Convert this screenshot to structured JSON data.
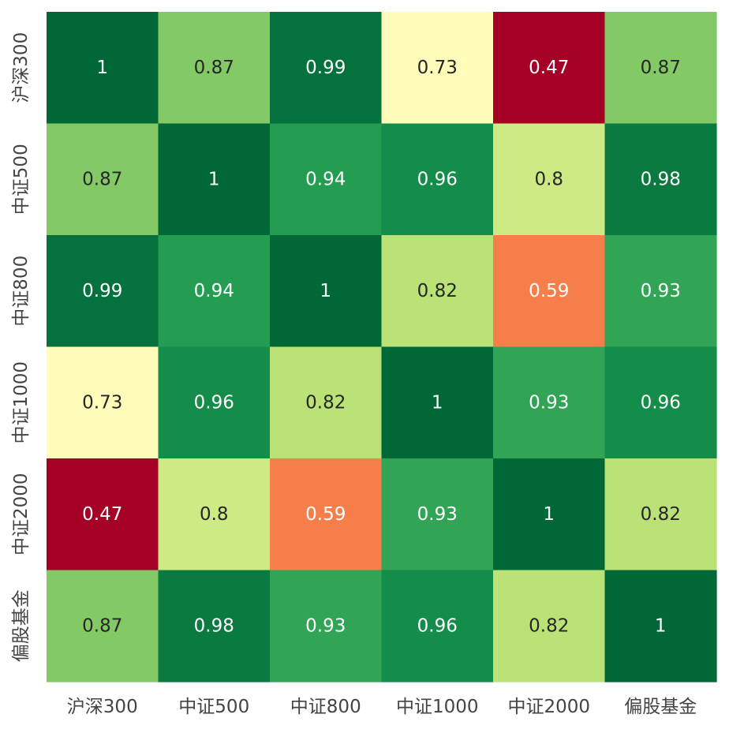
{
  "chart_data": {
    "type": "heatmap",
    "title": "",
    "xlabel": "",
    "ylabel": "",
    "x_categories": [
      "沪深300",
      "中证500",
      "中证800",
      "中证1000",
      "中证2000",
      "偏股基金"
    ],
    "y_categories": [
      "沪深300",
      "中证500",
      "中证800",
      "中证1000",
      "中证2000",
      "偏股基金"
    ],
    "values": [
      [
        1,
        0.87,
        0.99,
        0.73,
        0.47,
        0.87
      ],
      [
        0.87,
        1,
        0.94,
        0.96,
        0.8,
        0.98
      ],
      [
        0.99,
        0.94,
        1,
        0.82,
        0.59,
        0.93
      ],
      [
        0.73,
        0.96,
        0.82,
        1,
        0.93,
        0.96
      ],
      [
        0.47,
        0.8,
        0.59,
        0.93,
        1,
        0.82
      ],
      [
        0.87,
        0.98,
        0.93,
        0.96,
        0.82,
        1
      ]
    ],
    "value_range": [
      0.47,
      1
    ],
    "colormap": "RdYlGn",
    "annotated": true
  }
}
